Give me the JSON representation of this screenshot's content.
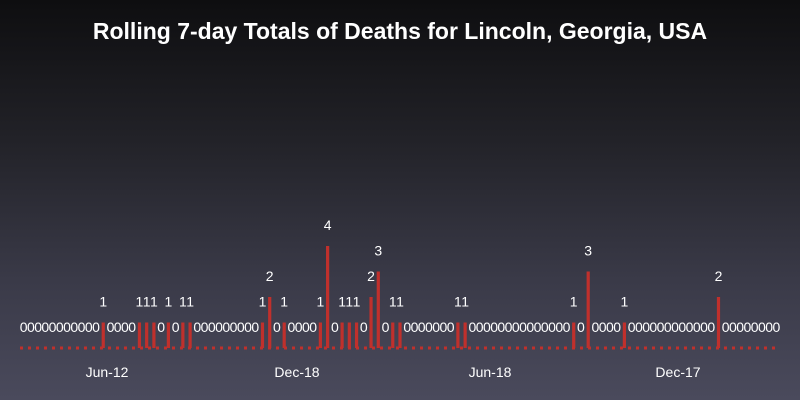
{
  "chart_data": {
    "type": "bar",
    "title": "Rolling 7-day Totals of Deaths for Lincoln, Georgia, USA",
    "xlabel": "",
    "ylabel": "",
    "ylim": [
      0,
      4
    ],
    "grid": false,
    "legend": "none",
    "x_ticks": [
      "Jun-12",
      "Dec-18",
      "Jun-18",
      "Dec-17"
    ],
    "values": [
      0,
      0,
      0,
      0,
      0,
      0,
      0,
      0,
      0,
      0,
      0,
      1,
      0,
      0,
      0,
      0,
      1,
      1,
      1,
      0,
      1,
      0,
      1,
      1,
      0,
      0,
      0,
      0,
      0,
      0,
      0,
      0,
      0,
      1,
      2,
      0,
      1,
      0,
      0,
      0,
      0,
      1,
      4,
      0,
      1,
      1,
      1,
      0,
      2,
      3,
      0,
      1,
      1,
      0,
      0,
      0,
      0,
      0,
      0,
      0,
      1,
      1,
      0,
      0,
      0,
      0,
      0,
      0,
      0,
      0,
      0,
      0,
      0,
      0,
      0,
      0,
      1,
      0,
      3,
      0,
      0,
      0,
      0,
      1,
      0,
      0,
      0,
      0,
      0,
      0,
      0,
      0,
      0,
      0,
      0,
      0,
      2,
      0,
      0,
      0,
      0,
      0,
      0,
      0,
      0
    ],
    "bar_color": "#c0302c"
  }
}
